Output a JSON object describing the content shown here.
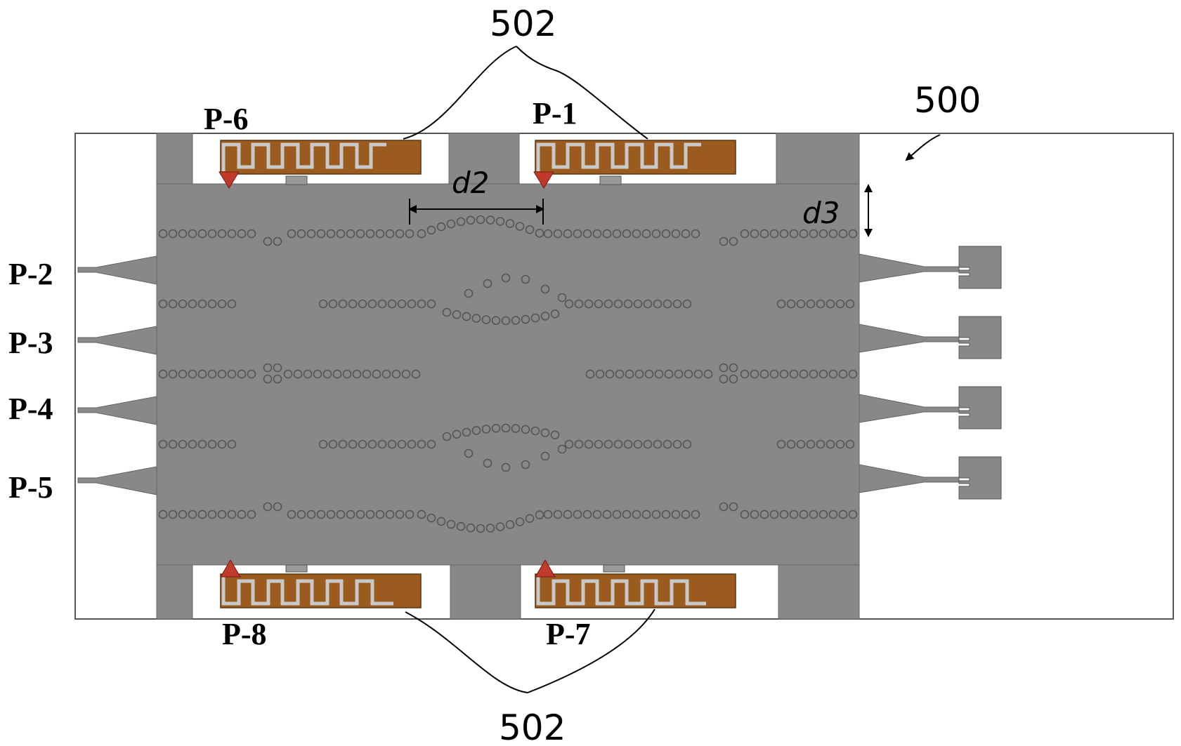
{
  "figure": {
    "reference_numerals": {
      "device": "500",
      "antenna_top": "502",
      "antenna_bottom": "502"
    },
    "ports": {
      "p1": "P-1",
      "p2": "P-2",
      "p3": "P-3",
      "p4": "P-4",
      "p5": "P-5",
      "p6": "P-6",
      "p7": "P-7",
      "p8": "P-8"
    },
    "dimensions": {
      "d2": "d2",
      "d3": "d3"
    },
    "colors": {
      "substrate": "#888888",
      "antenna": "#9b5a1e",
      "feed_arrow": "#c0392b",
      "outline": "#555555"
    }
  }
}
